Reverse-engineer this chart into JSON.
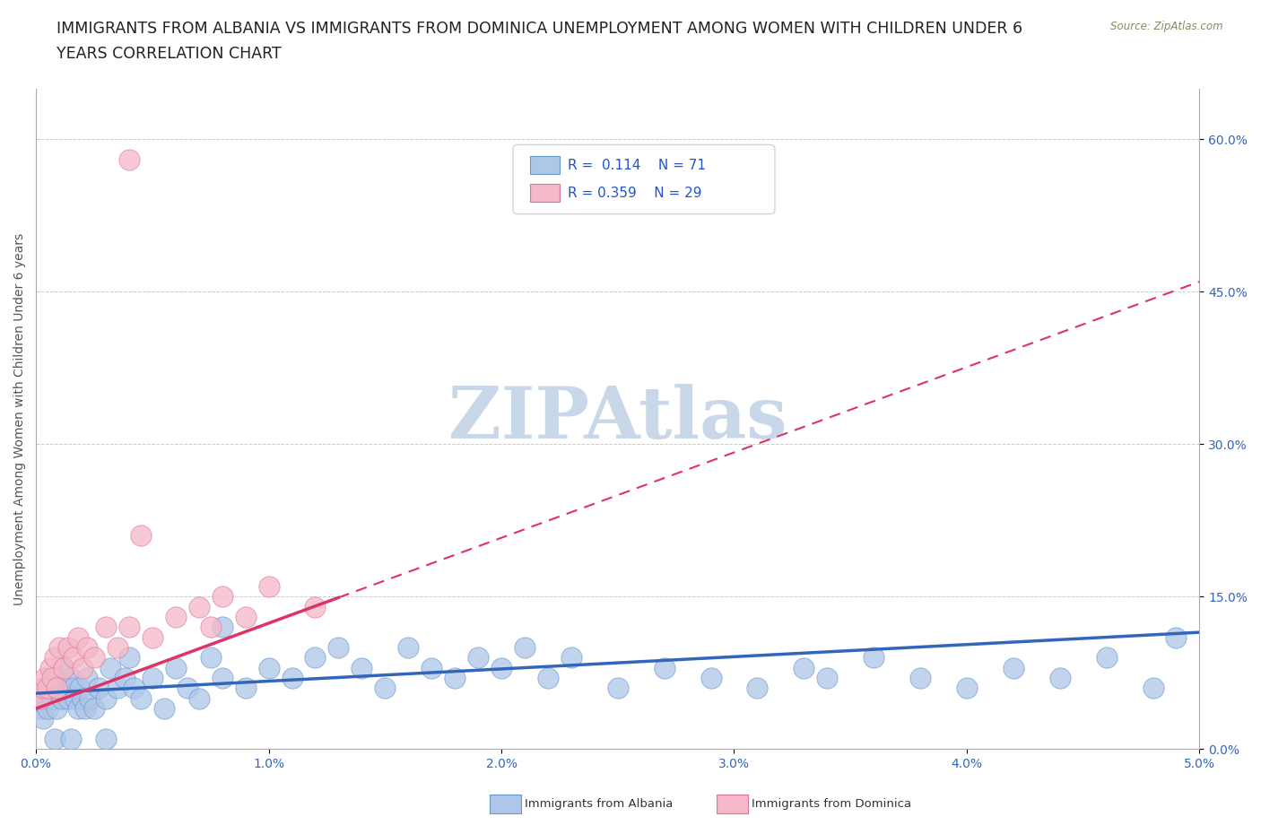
{
  "title_line1": "IMMIGRANTS FROM ALBANIA VS IMMIGRANTS FROM DOMINICA UNEMPLOYMENT AMONG WOMEN WITH CHILDREN UNDER 6",
  "title_line2": "YEARS CORRELATION CHART",
  "source": "Source: ZipAtlas.com",
  "ylabel": "Unemployment Among Women with Children Under 6 years",
  "xlim": [
    0.0,
    0.05
  ],
  "ylim": [
    0.0,
    0.65
  ],
  "xticks": [
    0.0,
    0.01,
    0.02,
    0.03,
    0.04,
    0.05
  ],
  "xticklabels": [
    "0.0%",
    "1.0%",
    "2.0%",
    "3.0%",
    "4.0%",
    "5.0%"
  ],
  "yticks": [
    0.0,
    0.15,
    0.3,
    0.45,
    0.6
  ],
  "yticklabels": [
    "0.0%",
    "15.0%",
    "30.0%",
    "45.0%",
    "60.0%"
  ],
  "grid_color": "#cccccc",
  "background_color": "#ffffff",
  "albania_color": "#aec6e8",
  "dominica_color": "#f4b8c8",
  "albania_edge_color": "#6699cc",
  "dominica_edge_color": "#dd7799",
  "albania_line_color": "#3366bb",
  "dominica_line_color": "#dd3366",
  "albania_line_dash": "solid",
  "dominica_line_dash": "dashed",
  "albania_R": 0.114,
  "albania_N": 71,
  "dominica_R": 0.359,
  "dominica_N": 29,
  "watermark": "ZIPAtlas",
  "watermark_color": "#c8d8e8",
  "title_fontsize": 12.5,
  "axis_label_fontsize": 10,
  "tick_fontsize": 10,
  "tick_color": "#3366bb",
  "albania_scatter_x": [
    0.0002,
    0.0003,
    0.0004,
    0.0005,
    0.0006,
    0.0007,
    0.0008,
    0.0009,
    0.001,
    0.0011,
    0.0012,
    0.0013,
    0.0014,
    0.0015,
    0.0016,
    0.0017,
    0.0018,
    0.0019,
    0.002,
    0.0021,
    0.0022,
    0.0023,
    0.0025,
    0.0027,
    0.003,
    0.0032,
    0.0035,
    0.0038,
    0.004,
    0.0042,
    0.0045,
    0.005,
    0.0055,
    0.006,
    0.0065,
    0.007,
    0.0075,
    0.008,
    0.009,
    0.01,
    0.011,
    0.012,
    0.013,
    0.014,
    0.015,
    0.016,
    0.017,
    0.018,
    0.019,
    0.02,
    0.021,
    0.022,
    0.023,
    0.025,
    0.027,
    0.029,
    0.031,
    0.033,
    0.034,
    0.036,
    0.038,
    0.04,
    0.042,
    0.044,
    0.046,
    0.048,
    0.049,
    0.0008,
    0.0015,
    0.003,
    0.008
  ],
  "albania_scatter_y": [
    0.04,
    0.03,
    0.05,
    0.04,
    0.06,
    0.05,
    0.07,
    0.04,
    0.06,
    0.05,
    0.08,
    0.06,
    0.05,
    0.07,
    0.06,
    0.05,
    0.04,
    0.06,
    0.05,
    0.04,
    0.07,
    0.05,
    0.04,
    0.06,
    0.05,
    0.08,
    0.06,
    0.07,
    0.09,
    0.06,
    0.05,
    0.07,
    0.04,
    0.08,
    0.06,
    0.05,
    0.09,
    0.07,
    0.06,
    0.08,
    0.07,
    0.09,
    0.1,
    0.08,
    0.06,
    0.1,
    0.08,
    0.07,
    0.09,
    0.08,
    0.1,
    0.07,
    0.09,
    0.06,
    0.08,
    0.07,
    0.06,
    0.08,
    0.07,
    0.09,
    0.07,
    0.06,
    0.08,
    0.07,
    0.09,
    0.06,
    0.11,
    0.01,
    0.01,
    0.01,
    0.12
  ],
  "dominica_scatter_x": [
    0.0002,
    0.0003,
    0.0004,
    0.0005,
    0.0006,
    0.0007,
    0.0008,
    0.0009,
    0.001,
    0.0012,
    0.0014,
    0.0016,
    0.0018,
    0.002,
    0.0022,
    0.0025,
    0.003,
    0.0035,
    0.004,
    0.005,
    0.006,
    0.007,
    0.0075,
    0.008,
    0.009,
    0.01,
    0.012,
    0.004,
    0.0045
  ],
  "dominica_scatter_y": [
    0.05,
    0.06,
    0.07,
    0.06,
    0.08,
    0.07,
    0.09,
    0.06,
    0.1,
    0.08,
    0.1,
    0.09,
    0.11,
    0.08,
    0.1,
    0.09,
    0.12,
    0.1,
    0.12,
    0.11,
    0.13,
    0.14,
    0.12,
    0.15,
    0.13,
    0.16,
    0.14,
    0.58,
    0.21
  ],
  "albania_trend_x": [
    0.0,
    0.05
  ],
  "albania_trend_y": [
    0.055,
    0.115
  ],
  "dominica_trend_x": [
    0.0,
    0.05
  ],
  "dominica_trend_y": [
    0.04,
    0.46
  ]
}
